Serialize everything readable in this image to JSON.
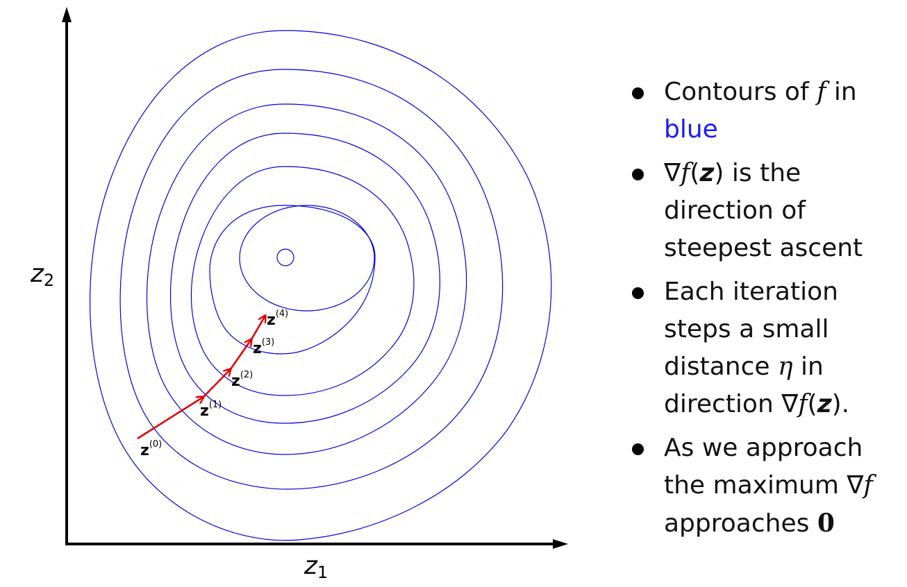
{
  "diagram": {
    "axis_x_label": "z",
    "axis_x_sub": "1",
    "axis_y_label": "z",
    "axis_y_sub": "2",
    "contour_color": "#0000e0",
    "arrow_color": "#e00000",
    "points": [
      {
        "label": "z",
        "sup": "(0)"
      },
      {
        "label": "z",
        "sup": "(1)"
      },
      {
        "label": "z",
        "sup": "(2)"
      },
      {
        "label": "z",
        "sup": "(3)"
      },
      {
        "label": "z",
        "sup": "(4)"
      }
    ]
  },
  "bullets": {
    "b1": {
      "t1": "Contours of ",
      "f": "f",
      "t2": " in",
      "blue": "blue"
    },
    "b2": {
      "grad": "∇",
      "f": "f",
      "lp": "(",
      "z": "z",
      "rp": ")",
      "t1": " is the direction of steepest ascent"
    },
    "b3": {
      "t1": "Each iteration steps a small distance ",
      "eta": "η",
      "t2": " in direction ",
      "grad": "∇",
      "f": "f",
      "lp": "(",
      "z": "z",
      "rp": ").",
      "t3": ""
    },
    "b4": {
      "t1": "As we approach the maximum ",
      "grad": "∇",
      "f": "f",
      "t2": " approaches ",
      "zero": "0"
    }
  }
}
